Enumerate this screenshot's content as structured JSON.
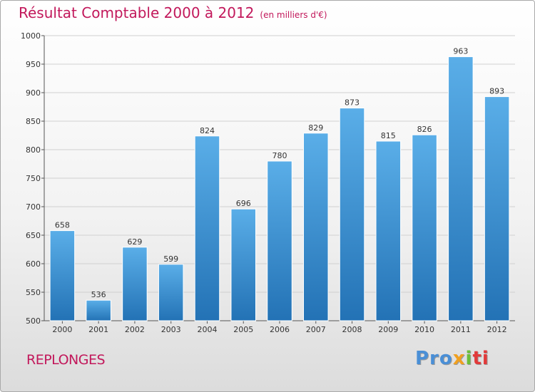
{
  "header": {
    "title": "Résultat Comptable 2000 à 2012",
    "subtitle": "(en milliers d'€)"
  },
  "footer": {
    "commune": "REPLONGES",
    "logo": {
      "p1": "Pro",
      "p2": "x",
      "p3": "i",
      "p4": "ti"
    }
  },
  "colors": {
    "bar_top": "#5aaee8",
    "bar_bottom": "#2372b5",
    "title": "#c2185b"
  },
  "chart_data": {
    "type": "bar",
    "title": "Résultat Comptable 2000 à 2012",
    "subtitle": "(en milliers d'€)",
    "categories": [
      "2000",
      "2001",
      "2002",
      "2003",
      "2004",
      "2005",
      "2006",
      "2007",
      "2008",
      "2009",
      "2010",
      "2011",
      "2012"
    ],
    "values": [
      658,
      536,
      629,
      599,
      824,
      696,
      780,
      829,
      873,
      815,
      826,
      963,
      893
    ],
    "ylim": [
      500,
      1000
    ],
    "yticks": [
      500,
      550,
      600,
      650,
      700,
      750,
      800,
      850,
      900,
      950,
      1000
    ],
    "grid": true,
    "legend": "none"
  }
}
